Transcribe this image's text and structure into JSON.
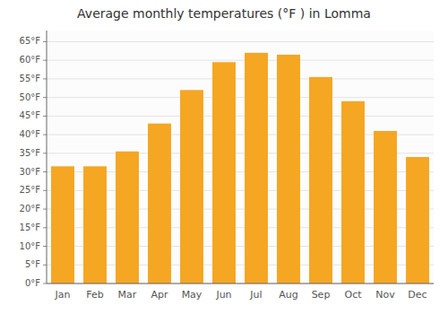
{
  "chart_data": {
    "type": "bar",
    "title": "Average monthly temperatures (°F ) in Lomma",
    "categories": [
      "Jan",
      "Feb",
      "Mar",
      "Apr",
      "May",
      "Jun",
      "Jul",
      "Aug",
      "Sep",
      "Oct",
      "Nov",
      "Dec"
    ],
    "values": [
      31.5,
      31.5,
      35.5,
      43,
      52,
      59.5,
      62,
      61.5,
      55.5,
      49,
      41,
      34
    ],
    "color": "#F5A623",
    "ylim": [
      0,
      68
    ],
    "yticks": [
      {
        "value": 0,
        "label": "0°F"
      },
      {
        "value": 5,
        "label": "5°F"
      },
      {
        "value": 10,
        "label": "10°F"
      },
      {
        "value": 15,
        "label": "15°F"
      },
      {
        "value": 20,
        "label": "20°F"
      },
      {
        "value": 25,
        "label": "25°F"
      },
      {
        "value": 30,
        "label": "30°F"
      },
      {
        "value": 35,
        "label": "35°F"
      },
      {
        "value": 40,
        "label": "40°F"
      },
      {
        "value": 45,
        "label": "45°F"
      },
      {
        "value": 50,
        "label": "50°F"
      },
      {
        "value": 55,
        "label": "55°F"
      },
      {
        "value": 60,
        "label": "60°F"
      },
      {
        "value": 65,
        "label": "65°F"
      }
    ],
    "grid": true
  }
}
